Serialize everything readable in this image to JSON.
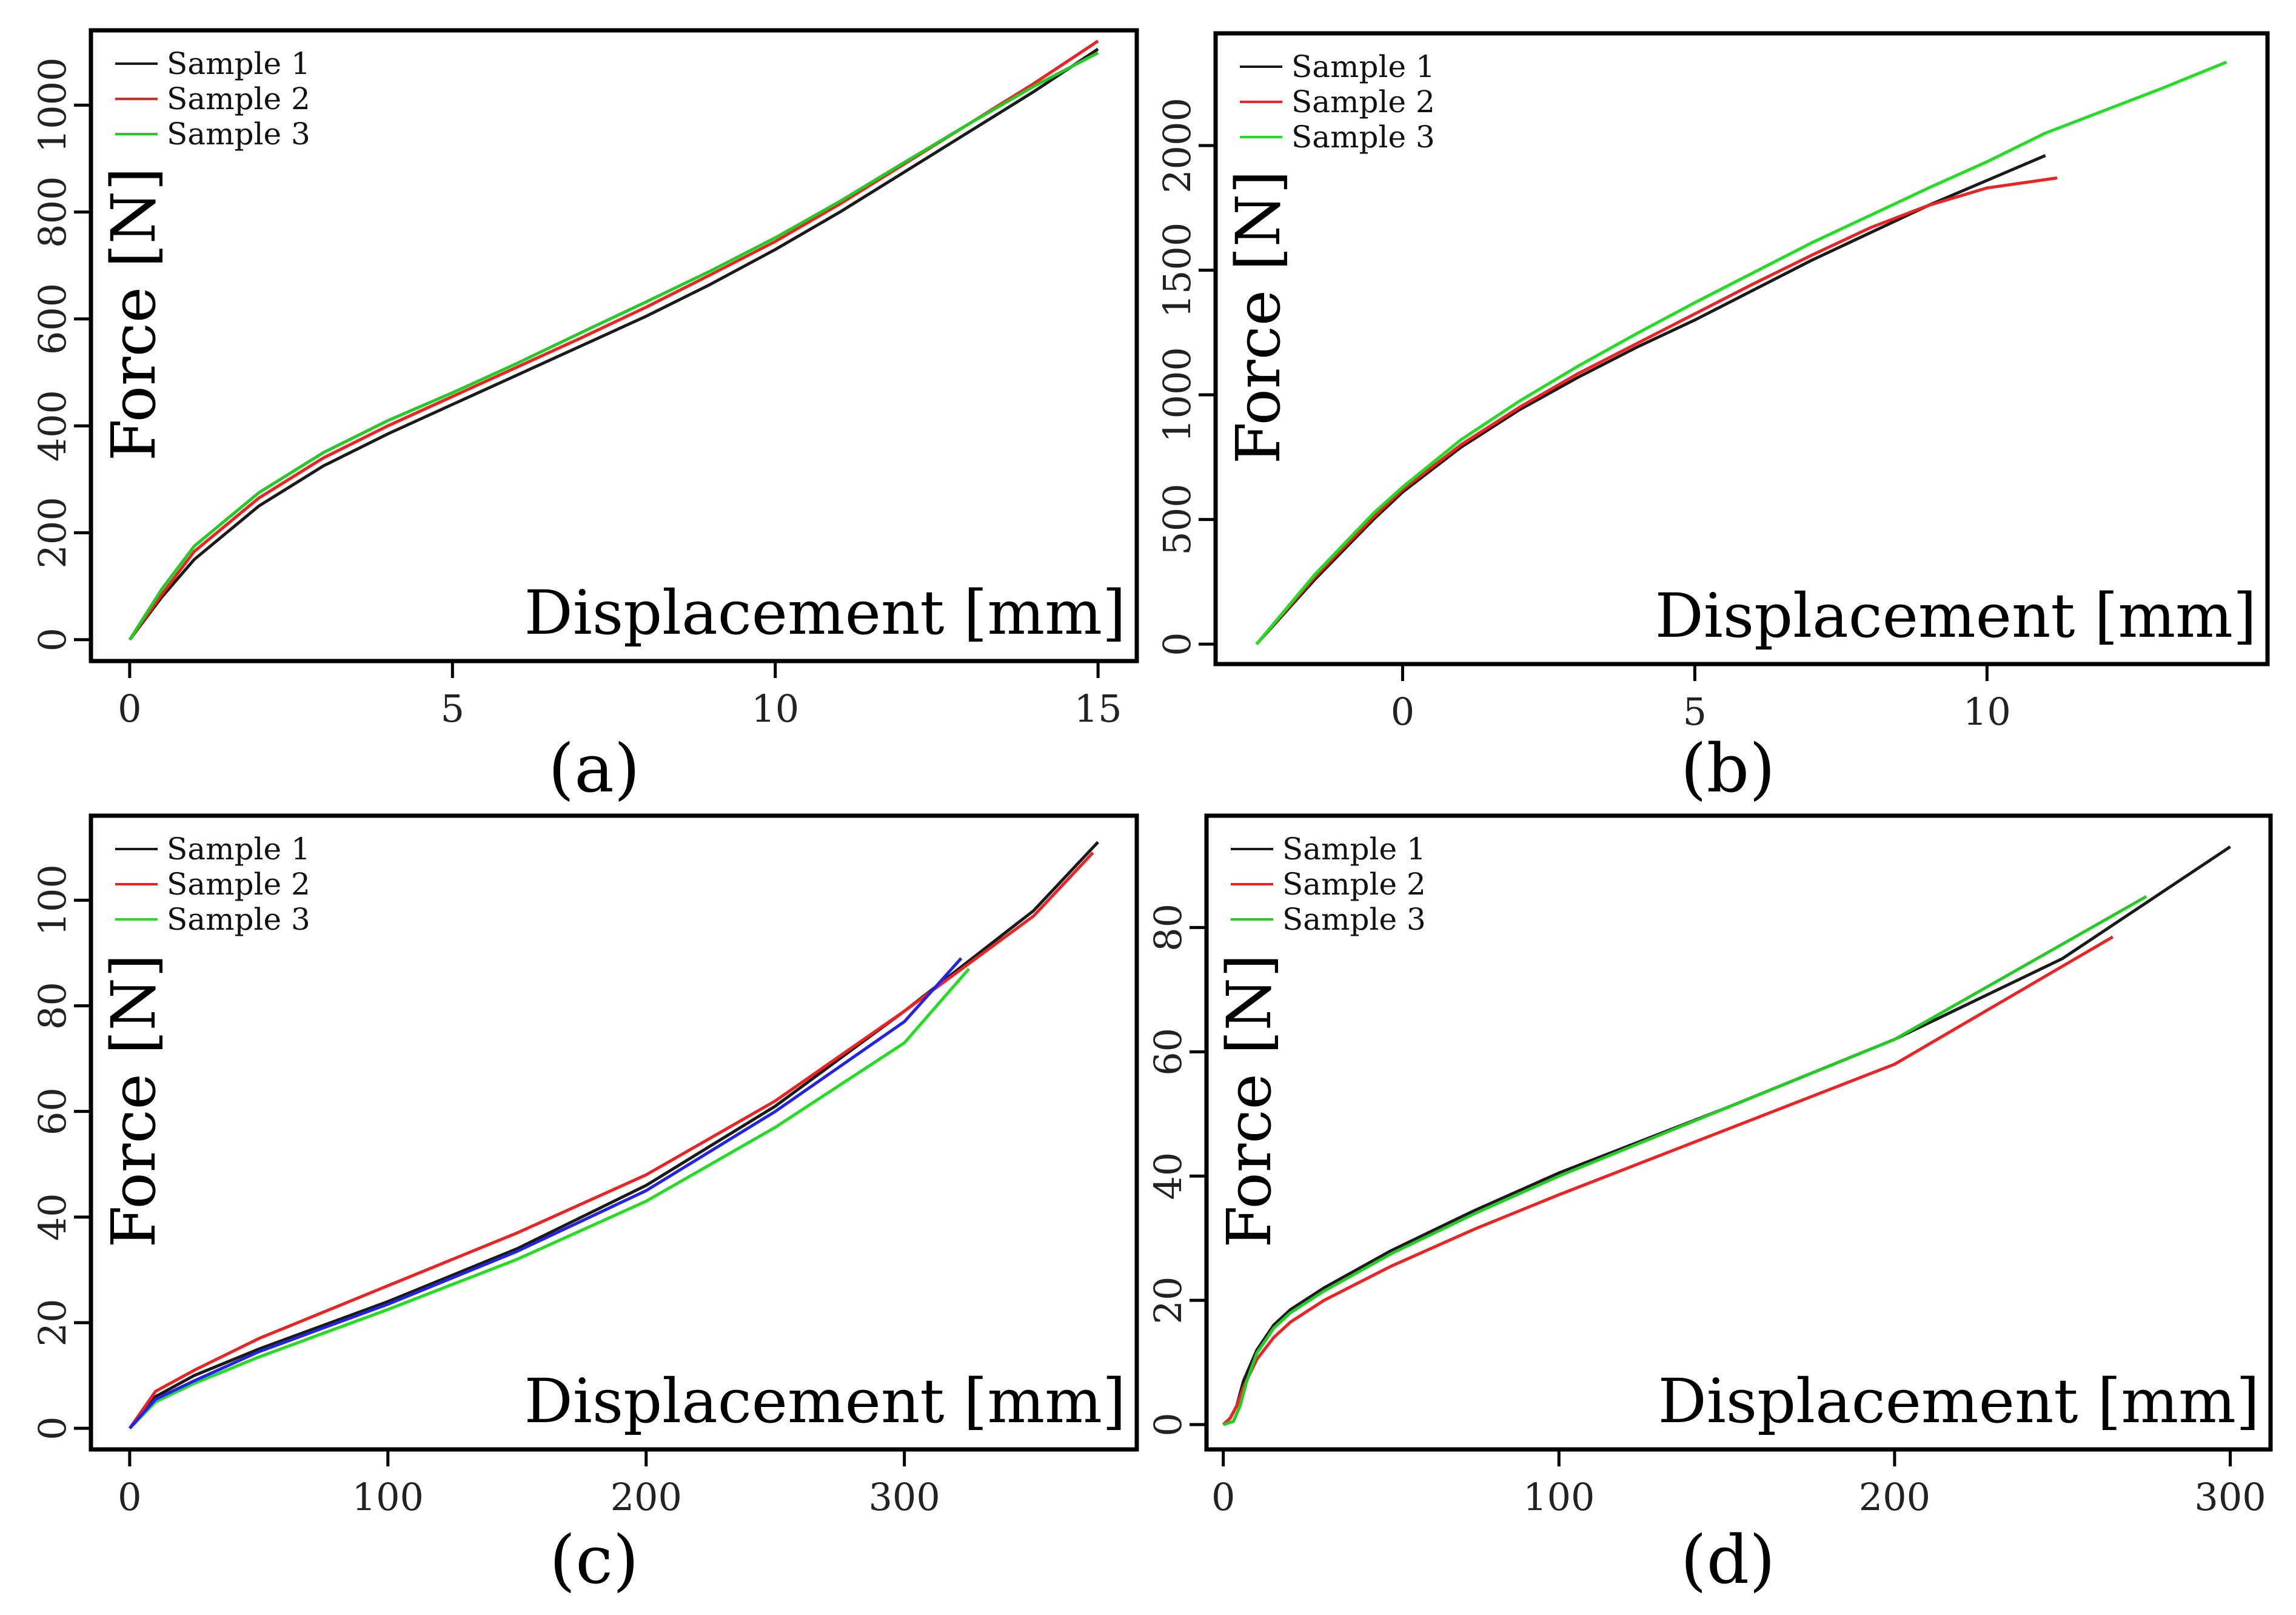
{
  "chart_data": [
    {
      "type": "line",
      "caption": "(a)",
      "xlabel": "Displacement [mm]",
      "ylabel": "Force [N]",
      "xlim": [
        -0.6,
        15.6
      ],
      "ylim": [
        -40,
        1140
      ],
      "xticks": [
        0,
        5,
        10,
        15
      ],
      "xtick_labels": [
        "0",
        "5",
        "10",
        "15"
      ],
      "yticks": [
        0,
        200,
        400,
        600,
        800,
        1000
      ],
      "ytick_labels": [
        "0",
        "200",
        "400",
        "600",
        "800",
        "1000"
      ],
      "legend": "top-left",
      "series": [
        {
          "name": "Sample 1",
          "color": "#1a1a1a",
          "x": [
            0,
            0.5,
            1,
            2,
            3,
            4,
            5,
            6,
            7,
            8,
            9,
            10,
            11,
            12,
            13,
            14,
            15
          ],
          "y": [
            0,
            80,
            150,
            250,
            325,
            385,
            440,
            495,
            550,
            605,
            665,
            730,
            800,
            875,
            950,
            1025,
            1105
          ]
        },
        {
          "name": "Sample 2",
          "color": "#ee2222",
          "x": [
            0,
            0.5,
            1,
            2,
            3,
            4,
            5,
            6,
            7,
            8,
            9,
            10,
            11,
            12,
            13,
            14,
            15
          ],
          "y": [
            0,
            85,
            165,
            265,
            340,
            400,
            455,
            510,
            565,
            622,
            683,
            745,
            815,
            890,
            965,
            1040,
            1120
          ]
        },
        {
          "name": "Sample 3",
          "color": "#22cc22",
          "x": [
            0,
            0.5,
            1,
            2,
            3,
            4,
            5,
            6,
            7,
            8,
            9,
            10,
            11,
            12,
            13,
            14,
            15
          ],
          "y": [
            0,
            95,
            175,
            275,
            350,
            410,
            462,
            517,
            575,
            632,
            690,
            752,
            820,
            893,
            965,
            1035,
            1098
          ]
        }
      ]
    },
    {
      "type": "line",
      "caption": "(b)",
      "xlabel": "Displacement [mm]",
      "ylabel": "Force [N]",
      "xlim": [
        -3.2,
        14.8
      ],
      "ylim": [
        -80,
        2450
      ],
      "xticks": [
        0,
        5,
        10
      ],
      "xtick_labels": [
        "0",
        "5",
        "10"
      ],
      "yticks": [
        0,
        500,
        1000,
        1500,
        2000
      ],
      "ytick_labels": [
        "0",
        "500",
        "1000",
        "1500",
        "2000"
      ],
      "legend": "top-left",
      "series": [
        {
          "name": "Sample 1",
          "color": "#1a1a1a",
          "x": [
            -2.5,
            -1.5,
            -0.5,
            0,
            1,
            2,
            3,
            4,
            5,
            6,
            7,
            8,
            9,
            10,
            11
          ],
          "y": [
            0,
            260,
            500,
            610,
            790,
            940,
            1070,
            1190,
            1300,
            1420,
            1540,
            1650,
            1760,
            1860,
            1960
          ]
        },
        {
          "name": "Sample 2",
          "color": "#ee2222",
          "x": [
            -2.5,
            -1.5,
            -0.5,
            0,
            1,
            2,
            3,
            4,
            5,
            6,
            7,
            8,
            9,
            10,
            11.2
          ],
          "y": [
            0,
            270,
            510,
            620,
            800,
            950,
            1085,
            1205,
            1325,
            1445,
            1560,
            1670,
            1760,
            1830,
            1870
          ]
        },
        {
          "name": "Sample 3",
          "color": "#22dd22",
          "x": [
            -2.5,
            -1.5,
            -0.5,
            0,
            1,
            2,
            3,
            4,
            5,
            6,
            7,
            8,
            9,
            10,
            11,
            12,
            13,
            14.1
          ],
          "y": [
            0,
            280,
            525,
            630,
            820,
            975,
            1115,
            1245,
            1370,
            1490,
            1610,
            1720,
            1830,
            1935,
            2050,
            2140,
            2230,
            2335
          ]
        }
      ]
    },
    {
      "type": "line",
      "caption": "(c)",
      "xlabel": "Displacement [mm]",
      "ylabel": "Force [N]",
      "xlim": [
        -15,
        390
      ],
      "ylim": [
        -4,
        116
      ],
      "xticks": [
        0,
        100,
        200,
        300
      ],
      "xtick_labels": [
        "0",
        "100",
        "200",
        "300"
      ],
      "yticks": [
        0,
        20,
        40,
        60,
        80,
        100
      ],
      "ytick_labels": [
        "0",
        "20",
        "40",
        "60",
        "80",
        "100"
      ],
      "legend": "top-left",
      "series": [
        {
          "name": "Sample 1",
          "color": "#1a1a1a",
          "x": [
            0,
            10,
            25,
            50,
            75,
            100,
            150,
            200,
            250,
            300,
            350,
            375
          ],
          "y": [
            0,
            6,
            10,
            15,
            19.5,
            24,
            34,
            46,
            61,
            79,
            98,
            111
          ]
        },
        {
          "name": "Sample 2",
          "color": "#ee2222",
          "x": [
            0,
            10,
            25,
            50,
            75,
            100,
            150,
            200,
            250,
            300,
            350,
            373
          ],
          "y": [
            0,
            7,
            11,
            17,
            22,
            27,
            37,
            48,
            62,
            79,
            97,
            109
          ]
        },
        {
          "name": "Sample 3",
          "color": "#22dd22",
          "x": [
            0,
            10,
            25,
            50,
            75,
            100,
            150,
            200,
            250,
            300,
            325
          ],
          "y": [
            0,
            5,
            8.5,
            13.5,
            18,
            22.5,
            32,
            43,
            57,
            73,
            87
          ]
        },
        {
          "name": "",
          "color": "#2222ee",
          "x": [
            0,
            10,
            25,
            50,
            75,
            100,
            150,
            200,
            250,
            300,
            322
          ],
          "y": [
            0,
            5.5,
            9,
            14.5,
            19,
            23.5,
            33.5,
            45,
            60,
            77,
            89
          ]
        }
      ]
    },
    {
      "type": "line",
      "caption": "(d)",
      "xlabel": "Displacement [mm]",
      "ylabel": "Force [N]",
      "xlim": [
        -5,
        312
      ],
      "ylim": [
        -4,
        98
      ],
      "xticks": [
        0,
        100,
        200,
        300
      ],
      "xtick_labels": [
        "0",
        "100",
        "200",
        "300"
      ],
      "yticks": [
        0,
        20,
        40,
        60,
        80
      ],
      "ytick_labels": [
        "0",
        "20",
        "40",
        "60",
        "80"
      ],
      "legend": "top-left",
      "series": [
        {
          "name": "Sample 1",
          "color": "#1a1a1a",
          "x": [
            0,
            2,
            4,
            6,
            10,
            15,
            20,
            30,
            50,
            75,
            100,
            150,
            200,
            250,
            300
          ],
          "y": [
            0,
            1,
            3,
            7,
            12,
            16,
            18.5,
            22,
            28,
            34.5,
            40.5,
            51,
            62,
            75,
            93
          ]
        },
        {
          "name": "Sample 2",
          "color": "#ee2222",
          "x": [
            0,
            2,
            4,
            6,
            10,
            15,
            20,
            30,
            50,
            75,
            100,
            150,
            200,
            265
          ],
          "y": [
            0,
            1,
            3,
            6,
            10.5,
            14,
            16.5,
            20,
            25.5,
            31.5,
            37,
            47.5,
            58,
            78.5
          ]
        },
        {
          "name": "Sample 3",
          "color": "#22cc22",
          "x": [
            0,
            3,
            5,
            7,
            10,
            15,
            20,
            30,
            50,
            75,
            100,
            150,
            200,
            275
          ],
          "y": [
            0,
            0.5,
            3,
            7,
            11.5,
            15.5,
            18,
            21.5,
            27.5,
            34,
            40,
            51,
            62,
            85
          ]
        }
      ]
    }
  ]
}
